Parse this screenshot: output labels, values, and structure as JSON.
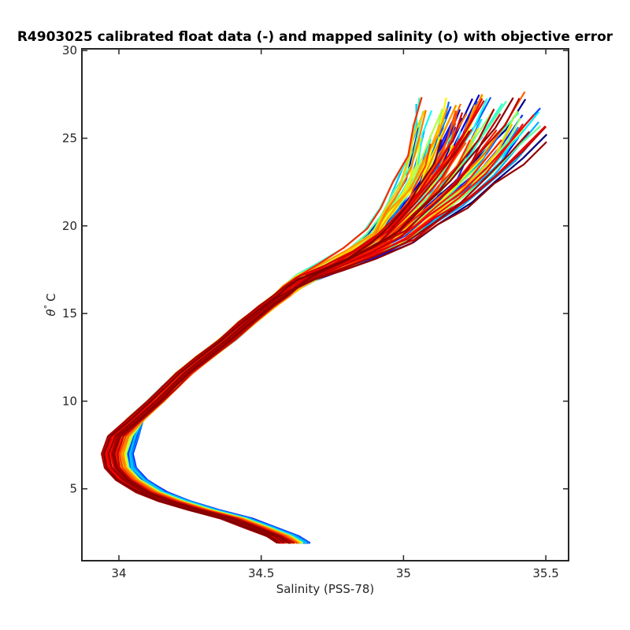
{
  "chart_data": {
    "type": "line",
    "title": "R4903025 calibrated float data (-) and mapped salinity (o) with objective error",
    "xlabel": "Salinity (PSS-78)",
    "ylabel_symbol": "θ",
    "ylabel_deg": "°",
    "ylabel_unit": "C",
    "xlim": [
      33.87,
      35.58
    ],
    "ylim": [
      0.9,
      30.1
    ],
    "xticks": [
      34,
      34.5,
      35,
      35.5
    ],
    "xtick_labels": [
      "34",
      "34.5",
      "35",
      "35.5"
    ],
    "yticks": [
      5,
      10,
      15,
      20,
      25,
      30
    ],
    "ytick_labels": [
      "5",
      "10",
      "15",
      "20",
      "25",
      "30"
    ],
    "grid": false,
    "colormap": "jet",
    "colormap_stops": [
      "#00007f",
      "#0000ff",
      "#007fff",
      "#00ffff",
      "#7fff7f",
      "#ffff00",
      "#ff7f00",
      "#ff0000",
      "#7f0000"
    ],
    "profile_count": 110,
    "base_profile": {
      "s": [
        34.62,
        34.58,
        34.5,
        34.42,
        34.3,
        34.2,
        34.12,
        34.05,
        34.01,
        34.0,
        34.02,
        34.06,
        34.13,
        34.18,
        34.23,
        34.3,
        34.38,
        34.45,
        34.52,
        34.57,
        34.61,
        34.66,
        34.75,
        34.85,
        34.95,
        35.02,
        35.1,
        35.17,
        35.23,
        35.28
      ],
      "theta": [
        1.9,
        2.3,
        2.8,
        3.3,
        3.8,
        4.3,
        4.8,
        5.5,
        6.2,
        7.0,
        8.0,
        9.0,
        10.0,
        10.8,
        11.6,
        12.5,
        13.5,
        14.5,
        15.4,
        16.0,
        16.5,
        17.0,
        17.6,
        18.3,
        19.2,
        20.3,
        21.5,
        22.8,
        24.2,
        25.6
      ]
    }
  }
}
